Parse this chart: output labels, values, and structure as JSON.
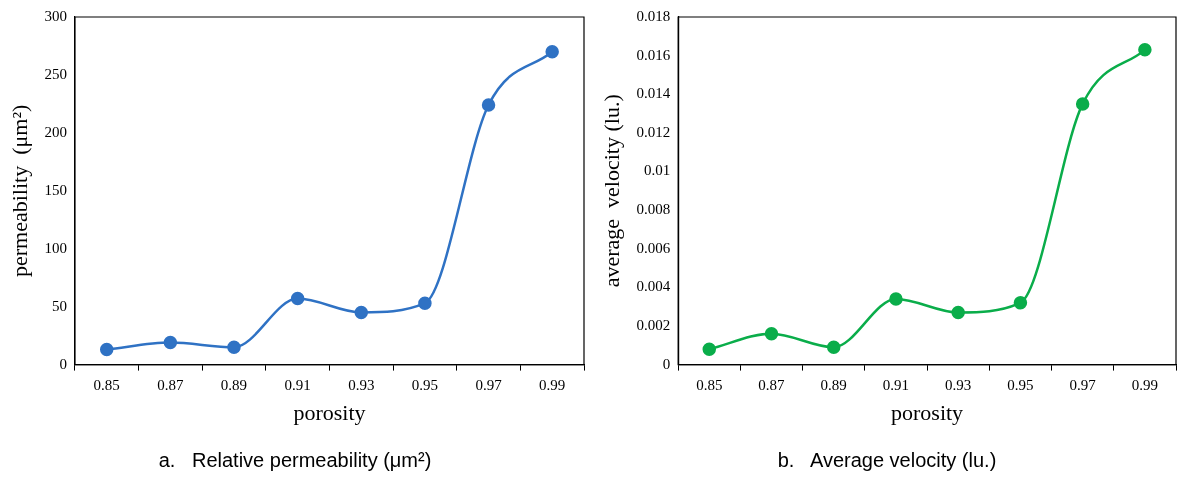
{
  "chart_data": [
    {
      "type": "line",
      "title": "a.   Relative permeability (μm²)",
      "xlabel": "porosity",
      "ylabel": "permeability  (μm²)",
      "categories": [
        "0.85",
        "0.87",
        "0.89",
        "0.91",
        "0.93",
        "0.95",
        "0.97",
        "0.99"
      ],
      "series": [
        {
          "color": "#2f72c4",
          "values": [
            13,
            19,
            15,
            57,
            45,
            53,
            224,
            270
          ]
        }
      ],
      "ylim": [
        0,
        300
      ],
      "yticks": [
        0,
        50,
        100,
        150,
        200,
        250,
        300
      ],
      "grid": false,
      "marker": "circle",
      "line_style": "solid"
    },
    {
      "type": "line",
      "title": "b.   Average velocity (lu.)",
      "xlabel": "porosity",
      "ylabel": "average  velocity (lu.)",
      "categories": [
        "0.85",
        "0.87",
        "0.89",
        "0.91",
        "0.93",
        "0.95",
        "0.97",
        "0.99"
      ],
      "series": [
        {
          "color": "#0aad4a",
          "values": [
            0.0008,
            0.0016,
            0.0009,
            0.0034,
            0.0027,
            0.0032,
            0.0135,
            0.0163
          ]
        }
      ],
      "ylim": [
        0,
        0.018
      ],
      "yticks": [
        0,
        0.002,
        0.004,
        0.006,
        0.008,
        0.01,
        0.012,
        0.014,
        0.016,
        0.018
      ],
      "grid": false,
      "marker": "circle",
      "line_style": "solid"
    }
  ]
}
